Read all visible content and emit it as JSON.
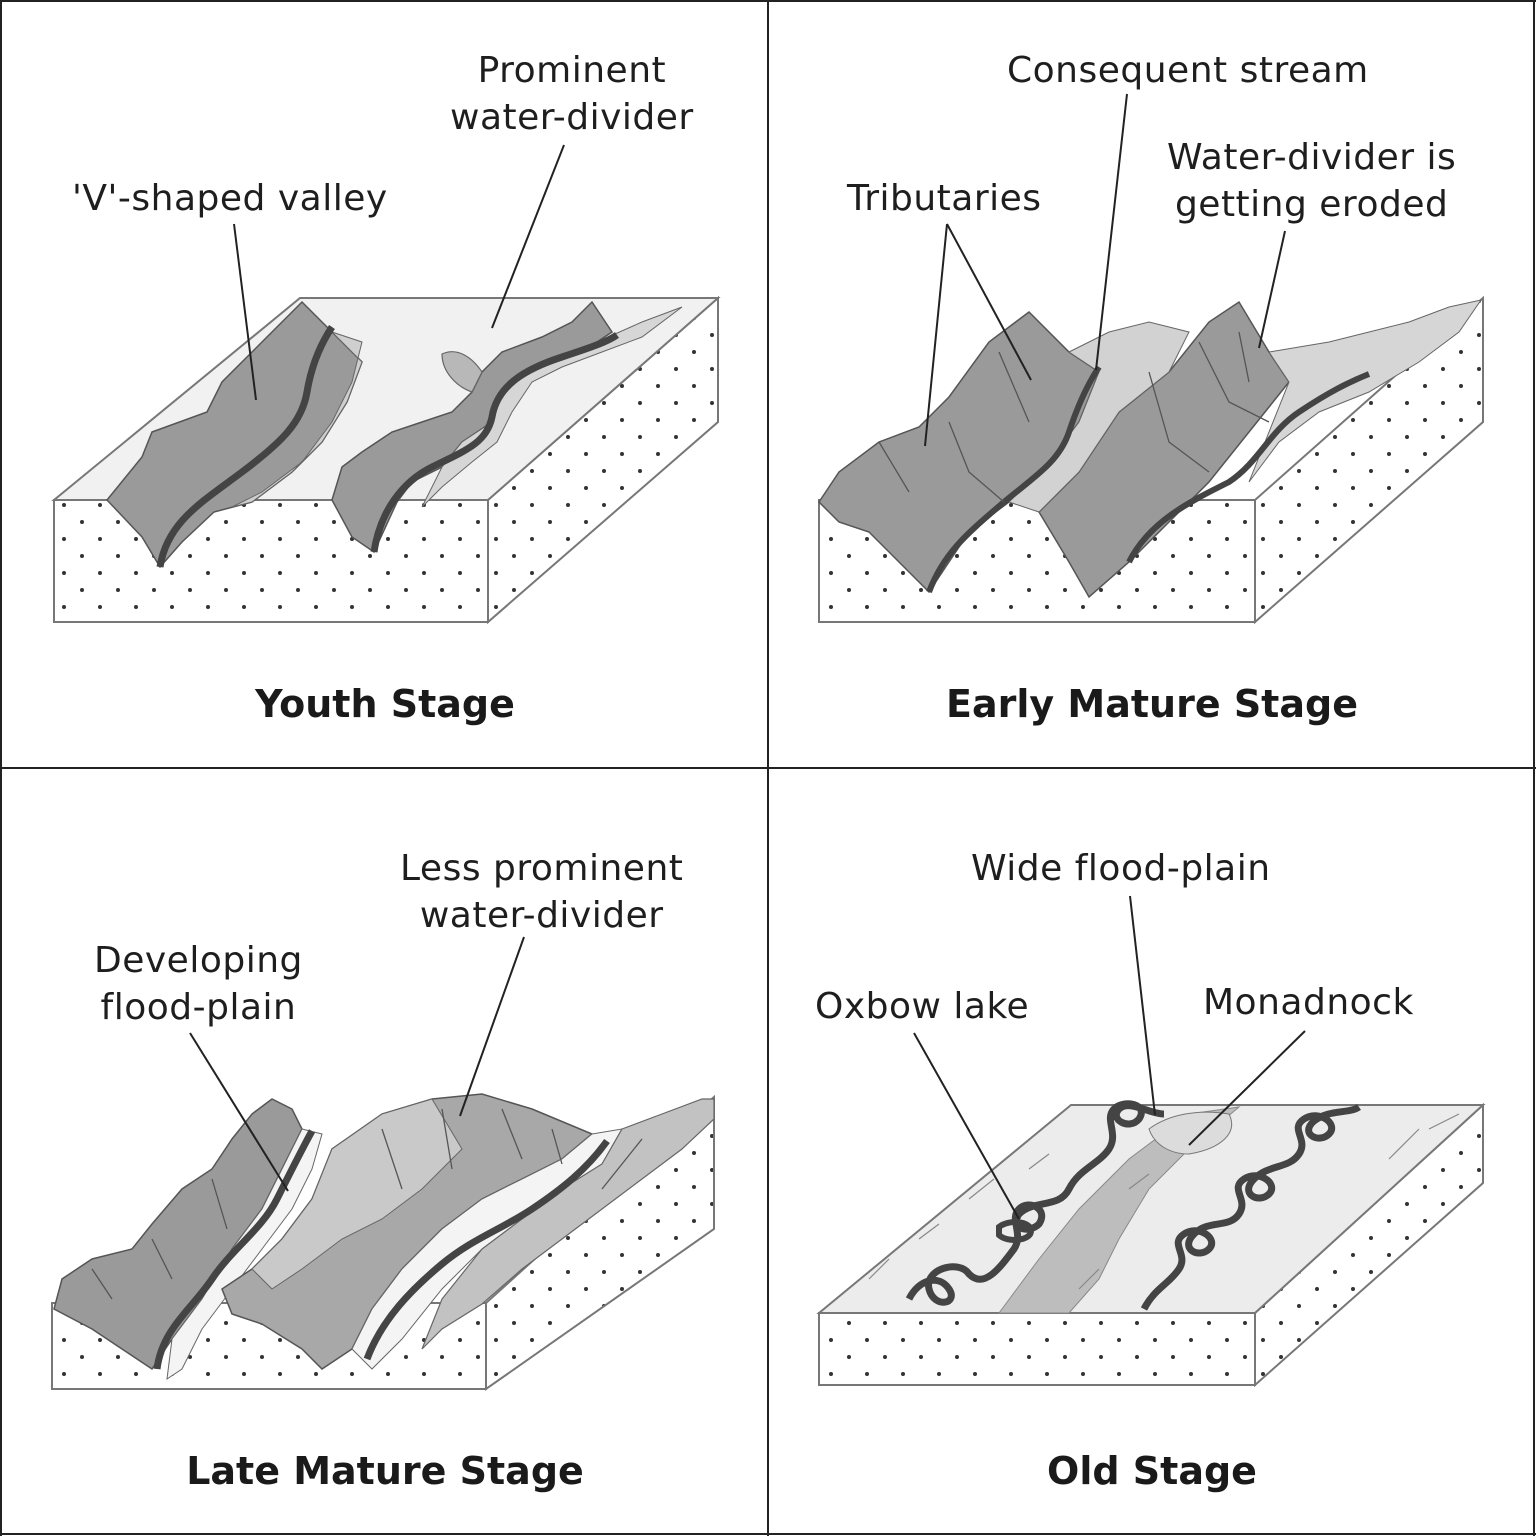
{
  "panels": [
    {
      "stage": "Youth Stage",
      "labels": [
        "'V'-shaped valley",
        "Prominent\nwater-divider"
      ]
    },
    {
      "stage": "Early Mature Stage",
      "labels": [
        "Consequent stream",
        "Tributaries",
        "Water-divider is\ngetting eroded"
      ]
    },
    {
      "stage": "Late Mature Stage",
      "labels": [
        "Less prominent\nwater-divider",
        "Developing\nflood-plain"
      ]
    },
    {
      "stage": "Old Stage",
      "labels": [
        "Wide flood-plain",
        "Oxbow lake",
        "Monadnock"
      ]
    }
  ],
  "colors": {
    "border": "#222222",
    "slope": "#9a9a9a",
    "river": "#555555",
    "plateau": "#efefef"
  }
}
